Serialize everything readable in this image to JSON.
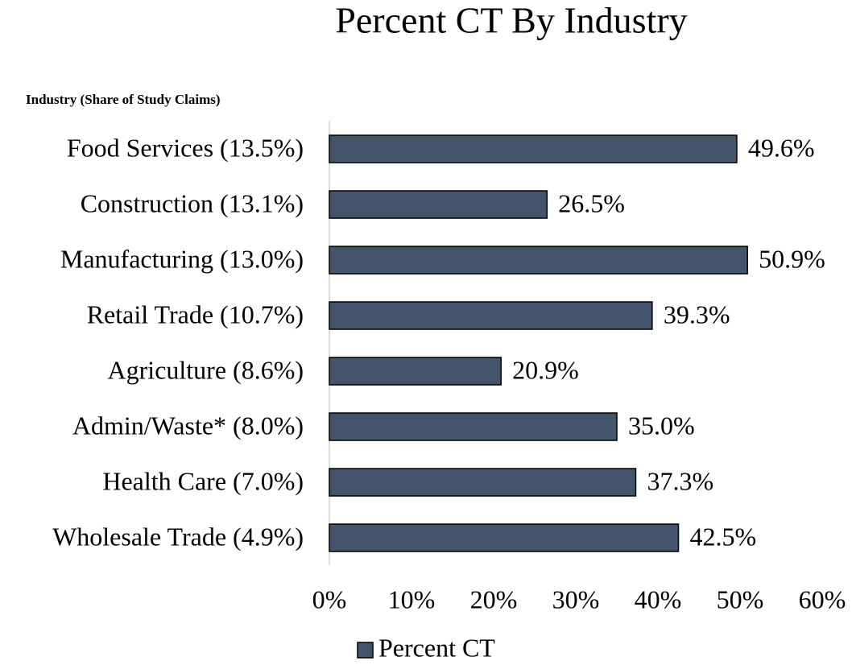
{
  "chart_data": {
    "type": "bar",
    "orientation": "horizontal",
    "title": "Percent CT By Industry",
    "y_axis_label": "Industry (Share of Study Claims)",
    "categories": [
      "Food Services (13.5%)",
      "Construction (13.1%)",
      "Manufacturing (13.0%)",
      "Retail Trade (10.7%)",
      "Agriculture (8.6%)",
      "Admin/Waste*  (8.0%)",
      "Health Care (7.0%)",
      "Wholesale Trade (4.9%)"
    ],
    "series": [
      {
        "name": "Percent CT",
        "color": "#44546a",
        "values": [
          49.6,
          26.5,
          50.9,
          39.3,
          20.9,
          35.0,
          37.3,
          42.5
        ],
        "value_labels": [
          "49.6%",
          "26.5%",
          "50.9%",
          "39.3%",
          "20.9%",
          "35.0%",
          "37.3%",
          "42.5%"
        ]
      }
    ],
    "xlim": [
      0,
      60
    ],
    "xticks": [
      {
        "value": 0,
        "label": "0%"
      },
      {
        "value": 10,
        "label": "10%"
      },
      {
        "value": 20,
        "label": "20%"
      },
      {
        "value": 30,
        "label": "30%"
      },
      {
        "value": 40,
        "label": "40%"
      },
      {
        "value": 50,
        "label": "50%"
      },
      {
        "value": 60,
        "label": "60%"
      }
    ],
    "grid": false,
    "legend": "bottom"
  }
}
